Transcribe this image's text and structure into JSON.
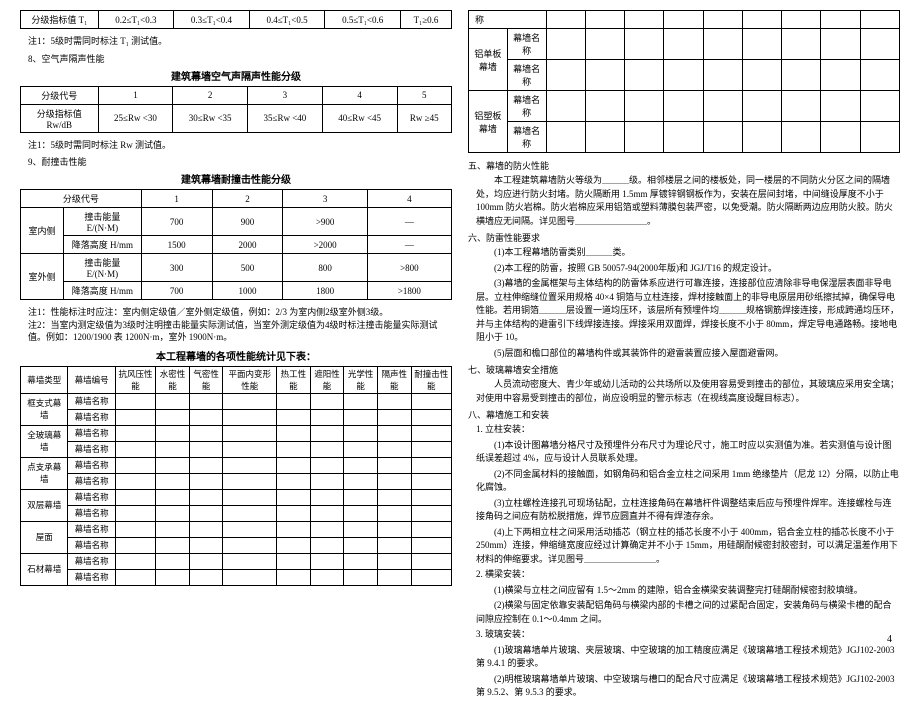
{
  "left": {
    "t1_row": {
      "label": "分级指标值 T₁",
      "c1": "0.2≤T₁<0.3",
      "c2": "0.3≤T₁<0.4",
      "c3": "0.4≤T₁<0.5",
      "c4": "0.5≤T₁<0.6",
      "c5": "T₁≥0.6"
    },
    "note_t1": "注1：5级时需同时标注 T₁ 测试值。",
    "sec8": "8、空气声隔声性能",
    "title_acoustic": "建筑幕墙空气声隔声性能分级",
    "acoustic": {
      "row1_label": "分级代号",
      "row2_label": "分级指标值 Rw/dB",
      "c1": "1",
      "c2": "2",
      "c3": "3",
      "c4": "4",
      "c5": "5",
      "v1": "25≤Rw <30",
      "v2": "30≤Rw <35",
      "v3": "35≤Rw <40",
      "v4": "40≤Rw <45",
      "v5": "Rw ≥45"
    },
    "note_rw": "注1：5级时需同时标注 Rw 测试值。",
    "sec9": "9、耐撞击性能",
    "title_impact": "建筑幕墙耐撞击性能分级",
    "impact": {
      "col_label": "分级代号",
      "cols": [
        "1",
        "2",
        "3",
        "4"
      ],
      "indoor": "室内侧",
      "outdoor": "室外侧",
      "e_label": "撞击能量 E/(N·M)",
      "h_label": "降落高度 H/mm",
      "e_in": [
        "700",
        "900",
        ">900",
        "—"
      ],
      "h_in": [
        "1500",
        "2000",
        ">2000",
        "—"
      ],
      "e_out": [
        "300",
        "500",
        "800",
        ">800"
      ],
      "h_out": [
        "700",
        "1000",
        "1800",
        ">1800"
      ]
    },
    "impact_notes": "注1：性能标注时应注：室内侧定级值／室外侧定级值，例如：2/3 为室内侧2级室外侧3级。\n注2：当室内测定级值为3级时注明撞击能量实际测试值，当室外测定级值为4级时标注撞击能量实际测试值。例如：1200/1900 表 1200N·m，室外 1900N·m。",
    "title_stats": "本工程幕墙的各项性能统计见下表：",
    "stats": {
      "head": [
        "幕墙类型",
        "幕墙编号",
        "抗风压性能",
        "水密性能",
        "气密性能",
        "平面内变形性能",
        "热工性能",
        "遮阳性能",
        "光学性能",
        "隔声性能",
        "耐撞击性能"
      ],
      "types": [
        "框支式幕墙",
        "全玻璃幕墙",
        "点支承幕墙",
        "双层幕墙",
        "屋面",
        "石材幕墙"
      ],
      "row_label": "幕墙名称"
    }
  },
  "right": {
    "top_table": {
      "col_name": "称",
      "panel1": "铝单板幕墙",
      "panel2": "铝塑板幕墙",
      "row1": "幕墙名称",
      "row2": "幕墙名称"
    },
    "sec5": "五、幕墙的防火性能",
    "p5a": "本工程建筑幕墙防火等级为＿＿＿级。相邻楼层之间的楼板处，同一楼层的不同防火分区之间的隔墙处，均应进行防火封堵。防火隔断用 1.5mm 厚镀锌钢钢板作为，安装在层间封堵，中间缝设厚度不小于 100mm 防火岩棉。防火岩棉应采用铝箔或塑料薄膜包装严密，以免受潮。防火隔断两边应用防火胶。防火横墙应无间隔。详见图号＿＿＿＿＿＿＿＿。",
    "sec6": "六、防雷性能要求",
    "p6_1": "(1)本工程幕墙防雷类别＿＿＿类。",
    "p6_2": "(2)本工程的防雷，按照 GB 50057-94(2000年版)和 JGJ/T16 的规定设计。",
    "p6_3": "(3)幕墙的金属框架与主体结构的防雷体系应进行可靠连接，连接部位应清除非导电保湿层表面非导电层。立柱伸缩缝位置采用规格 40×4 铜箔与立柱连接，焊材接触面上的非导电原层用砂纸擦拭掉，确保导电性能。若用铜箔＿＿＿层设置一道均压环，该层所有预埋件均＿＿＿规格钢筋焊接连接，形成跨通均压环，并与主体结构的避雷引下线焊接连接。焊接采用双面焊，焊接长度不小于 80mm，焊定导电通路畅。接地电阻小于 10。",
    "p6_5": "(5)层面和檐口部位的幕墙构件或其装饰件的避雷装置应接入屋面避雷网。",
    "sec7": "七、玻璃幕墙安全措施",
    "p7": "人员流动密度大、青少年或幼儿活动的公共场所以及使用容易受到撞击的部位，其玻璃应采用安全璃；对使用中容易受到撞击的部位，尚应设明显的警示标志（在视线高度设醒目标志）。",
    "sec8r": "八、幕墙施工和安装",
    "h8_1": "1. 立柱安装：",
    "p8_1": "(1)本设计图幕墙分格尺寸及预埋件分布尺寸为理论尺寸，施工时应以实测值为准。若实测值与设计图纸误差超过 4%，应与设计人员联系处理。",
    "p8_2": "(2)不同金属材料的接触面，如钢角码和铝合金立柱之间采用 1mm 绝缘垫片（尼龙 12）分隔，以防止电化腐蚀。",
    "p8_3": "(3)立柱螺栓连接孔可现场钻配，立柱连接角码在幕墙杆件调整结束后应与预埋件焊牢。连接螺栓与连接角码之间应有防松脱措施，焊节应圆直并不得有焊渣存余。",
    "p8_4": "(4)上下两相立柱之间采用活动插芯（钢立柱的插芯长度不小于 400mm，铝合金立柱的插芯长度不小于 250mm）连接，伸缩缝宽度应经过计算确定并不小于 15mm，用硅酮耐候密封胶密封，可以满足温差作用下材料的伸缩要求。详见图号＿＿＿＿＿＿＿＿。",
    "h8_2": "2. 横梁安装：",
    "p8_2a": "(1)横梁与立柱之间应留有 1.5～2mm 的建隙，铝合金横梁安装调整完打硅酮耐候密封胶填缝。",
    "p8_2b": "(2)横梁与固定依靠安装配铝角码与横梁内部的卡槽之间的过紧配合固定，安装角码与横梁卡槽的配合间隙应控制在 0.1～0.4mm 之间。",
    "h8_3": "3. 玻璃安装：",
    "p8_3a": "(1)玻璃幕墙单片玻璃、夹层玻璃、中空玻璃的加工精度应满足《玻璃幕墙工程技术规范》JGJ102-2003 第 9.4.1 的要求。",
    "p8_3b": "(2)明框玻璃幕墙单片玻璃、中空玻璃与槽口的配合尺寸应满足《玻璃幕墙工程技术规范》JGJ102-2003 第 9.5.2、第 9.5.3 的要求。"
  },
  "page_number": "4"
}
